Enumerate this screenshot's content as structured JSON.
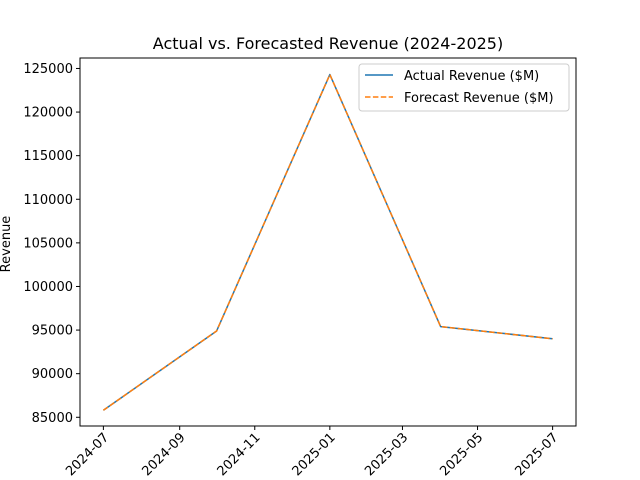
{
  "chart_data": {
    "type": "line",
    "title": "Actual vs. Forecasted Revenue (2024-2025)",
    "xlabel": "",
    "ylabel": "Revenue",
    "x": [
      "2024-07-01",
      "2024-10-01",
      "2025-01-01",
      "2025-04-01",
      "2025-07-01"
    ],
    "series": [
      {
        "name": "Actual Revenue ($M)",
        "values": [
          85800,
          94900,
          124300,
          95400,
          94000
        ],
        "color": "#1f77b4",
        "style": "solid"
      },
      {
        "name": "Forecast Revenue ($M)",
        "values": [
          85800,
          94900,
          124300,
          95400,
          94000
        ],
        "color": "#ff7f0e",
        "style": "dashed"
      }
    ],
    "ylim": [
      84000,
      126200
    ],
    "xlim": [
      "2024-06-12",
      "2025-07-20"
    ],
    "yticks": [
      85000,
      90000,
      95000,
      100000,
      105000,
      110000,
      115000,
      120000,
      125000
    ],
    "yticklabels": [
      "85000",
      "90000",
      "95000",
      "100000",
      "105000",
      "110000",
      "115000",
      "120000",
      "125000"
    ],
    "xticks": [
      "2024-07-01",
      "2024-09-01",
      "2024-11-01",
      "2025-01-01",
      "2025-03-01",
      "2025-05-01",
      "2025-07-01"
    ],
    "xticklabels": [
      "2024-07",
      "2024-09",
      "2024-11",
      "2025-01",
      "2025-03",
      "2025-05",
      "2025-07"
    ],
    "legend_position": "top-right",
    "grid": false
  }
}
